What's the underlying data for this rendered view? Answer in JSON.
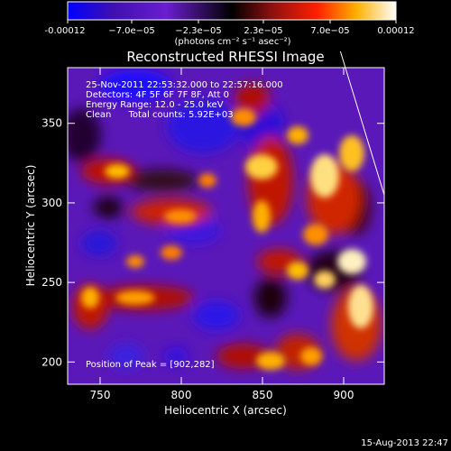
{
  "chart_data": {
    "type": "heatmap",
    "title": "Reconstructed RHESSI Image",
    "xlabel": "Heliocentric X (arcsec)",
    "ylabel": "Heliocentric Y (arcsec)",
    "xlim": [
      730,
      925
    ],
    "ylim": [
      186,
      385
    ],
    "x_ticks": [
      750,
      800,
      850,
      900
    ],
    "y_ticks": [
      200,
      250,
      300,
      350
    ],
    "colorbar": {
      "range": [
        -0.00012,
        0.00012
      ],
      "tick_labels": [
        "-0.00012",
        "−7.0e−05",
        "−2.3e−05",
        "2.3e−05",
        "7.0e−05",
        "0.00012"
      ],
      "unit_label": "(photons cm⁻² s⁻¹ asec⁻²)",
      "colormap": [
        "#0000ff",
        "#3f10b0",
        "#6a1ed0",
        "#000000",
        "#8b1010",
        "#ff2000",
        "#ffb000",
        "#ffffff"
      ]
    },
    "annotations": [
      "25-Nov-2011 22:53:32.000 to 22:57:16.000",
      "Detectors: 4F 5F 6F 7F 8F, Att 0",
      "Energy Range: 12.0 - 25.0 keV",
      "Clean      Total counts: 5.92E+03"
    ],
    "peak_label": "Position of Peak = [902,282]",
    "peak": [
      902,
      282
    ],
    "limb_line": [
      [
        898,
        385
      ],
      [
        925,
        305
      ]
    ]
  },
  "footer": {
    "timestamp": "15-Aug-2013 22:47"
  }
}
